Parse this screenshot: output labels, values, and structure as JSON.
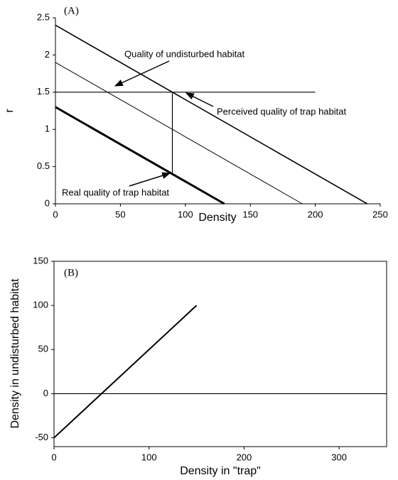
{
  "chart_data": [
    {
      "type": "line",
      "panel_label": "(A)",
      "x_label": "Density",
      "y_label": "r",
      "xlim": [
        0,
        250
      ],
      "ylim": [
        0,
        2.5
      ],
      "xticks": [
        0,
        50,
        100,
        150,
        200,
        250
      ],
      "yticks": [
        0,
        0.5,
        1,
        1.5,
        2,
        2.5
      ],
      "series": [
        {
          "color": "#000000",
          "x": [
            0,
            240
          ],
          "values": [
            2.4,
            0
          ]
        },
        {
          "color": "#000000",
          "x": [
            0,
            190
          ],
          "values": [
            1.9,
            0
          ]
        },
        {
          "color": "#000000",
          "x": [
            0,
            130
          ],
          "values": [
            1.3,
            0
          ]
        },
        {
          "color": "#000000",
          "x": [
            0,
            200
          ],
          "values": [
            1.5,
            1.5
          ]
        },
        {
          "color": "#000000",
          "x": [
            90,
            90
          ],
          "values": [
            0.4,
            1.5
          ]
        }
      ],
      "annotations": [
        "Quality of undisturbed habitat",
        "Perceived quality of trap habitat",
        "Real quality of trap habitat"
      ]
    },
    {
      "type": "line",
      "panel_label": "(B)",
      "x_label": "Density in \"trap\"",
      "y_label": "Density in undisturbed habitat",
      "xlim": [
        0,
        350
      ],
      "ylim": [
        -60,
        150
      ],
      "xticks": [
        0,
        100,
        200,
        300
      ],
      "yticks": [
        -50,
        0,
        50,
        100,
        150
      ],
      "series": [
        {
          "color": "#000000",
          "x": [
            0,
            150
          ],
          "values": [
            -50,
            100
          ]
        },
        {
          "color": "#000000",
          "x": [
            0,
            350
          ],
          "values": [
            0,
            0
          ]
        }
      ]
    }
  ]
}
